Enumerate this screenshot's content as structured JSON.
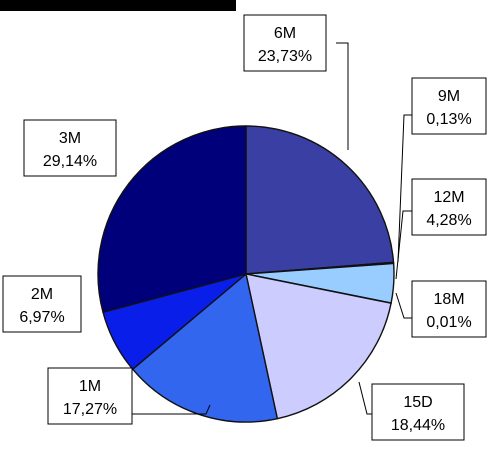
{
  "chart_data": {
    "type": "pie",
    "title": "",
    "slices": [
      {
        "label": "6M",
        "value": 23.73,
        "value_label": "23,73%",
        "color": "#3A3FA3"
      },
      {
        "label": "9M",
        "value": 0.13,
        "value_label": "0,13%",
        "color": "#1F2A8C"
      },
      {
        "label": "12M",
        "value": 4.28,
        "value_label": "4,28%",
        "color": "#99CCFF"
      },
      {
        "label": "18M",
        "value": 0.01,
        "value_label": "0,01%",
        "color": "#000080"
      },
      {
        "label": "15D",
        "value": 18.44,
        "value_label": "18,44%",
        "color": "#CCCCFF"
      },
      {
        "label": "1M",
        "value": 17.27,
        "value_label": "17,27%",
        "color": "#3366EE"
      },
      {
        "label": "2M",
        "value": 6.97,
        "value_label": "6,97%",
        "color": "#0A1EEA"
      },
      {
        "label": "3M",
        "value": 29.14,
        "value_label": "29,14%",
        "color": "#00007A"
      }
    ],
    "start_angle_deg": 0,
    "direction": "clockwise",
    "legend": "none",
    "data_labels": "callout-boxes"
  }
}
